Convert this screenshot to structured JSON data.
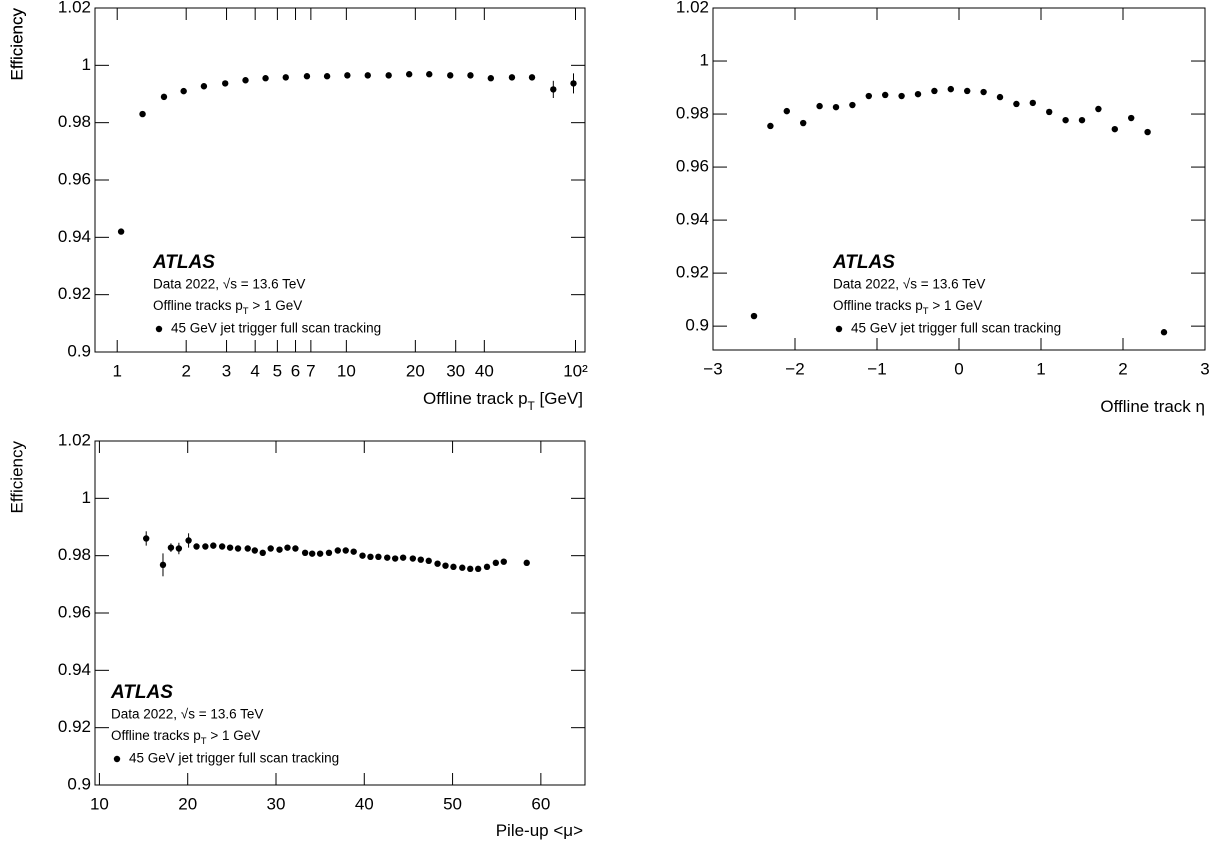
{
  "chart_data": [
    {
      "type": "scatter",
      "ylabel": "Efficiency",
      "xlabel": [
        "Offline track p",
        "T",
        " [GeV]"
      ],
      "log_x": true,
      "xlim": [
        0.8,
        110
      ],
      "xticks": [
        1,
        2,
        3,
        4,
        5,
        6,
        7,
        10,
        20,
        30,
        40,
        {
          "value": 100,
          "label": "10²"
        }
      ],
      "ylim": [
        0.9,
        1.02
      ],
      "yticks": [
        0.9,
        0.92,
        0.94,
        0.96,
        0.98,
        1,
        1.02
      ],
      "annotations": {
        "experiment": "ATLAS",
        "dataset": "Data 2022, √s = 13.6 TeV",
        "selection": [
          "Offline tracks p",
          "T",
          " > 1 GeV"
        ]
      },
      "x": [
        1.04,
        1.29,
        1.6,
        1.95,
        2.39,
        2.96,
        3.63,
        4.44,
        5.44,
        6.73,
        8.24,
        10.1,
        12.4,
        15.3,
        18.8,
        23,
        28.4,
        34.8,
        42.7,
        52.8,
        64.6,
        80,
        98
      ],
      "series": [
        {
          "name": "45 GeV jet trigger full scan tracking",
          "color": "#000000",
          "values": [
            0.942,
            0.983,
            0.989,
            0.991,
            0.9927,
            0.9937,
            0.9948,
            0.9955,
            0.9958,
            0.9962,
            0.9962,
            0.9965,
            0.9965,
            0.9965,
            0.9969,
            0.9969,
            0.9965,
            0.9965,
            0.9955,
            0.9958,
            0.9958,
            0.9916,
            0.9937
          ],
          "errors": [
            0.0005,
            0.0003,
            0.0003,
            0.0003,
            0.0003,
            0.0003,
            0.0003,
            0.0003,
            0.0003,
            0.0003,
            0.0003,
            0.0003,
            0.0003,
            0.0003,
            0.0003,
            0.0003,
            0.0003,
            0.0004,
            0.0005,
            0.0006,
            0.0008,
            0.003,
            0.0035
          ]
        }
      ]
    },
    {
      "type": "scatter",
      "ylabel": "Efficiency",
      "xlabel": [
        "Offline track η"
      ],
      "log_x": false,
      "xlim": [
        -3,
        3
      ],
      "xticks": [
        {
          "value": -3,
          "label": "−3"
        },
        {
          "value": -2,
          "label": "−2"
        },
        {
          "value": -1,
          "label": "−1"
        },
        0,
        1,
        2,
        3
      ],
      "ylim": [
        0.891,
        1.02
      ],
      "yticks": [
        0.9,
        0.92,
        0.94,
        0.96,
        0.98,
        1,
        1.02
      ],
      "annotations": {
        "experiment": "ATLAS",
        "dataset": "Data 2022, √s = 13.6 TeV",
        "selection": [
          "Offline tracks p",
          "T",
          " > 1 GeV"
        ]
      },
      "x": [
        -2.5,
        -2.3,
        -2.1,
        -1.9,
        -1.7,
        -1.5,
        -1.3,
        -1.1,
        -0.9,
        -0.7,
        -0.5,
        -0.3,
        -0.1,
        0.1,
        0.3,
        0.5,
        0.7,
        0.9,
        1.1,
        1.3,
        1.5,
        1.7,
        1.9,
        2.1,
        2.3,
        2.5
      ],
      "series": [
        {
          "name": "45 GeV jet trigger full scan tracking",
          "color": "#000000",
          "values": [
            0.9038,
            0.9755,
            0.9811,
            0.9766,
            0.983,
            0.9826,
            0.9834,
            0.9868,
            0.9872,
            0.9868,
            0.9875,
            0.9887,
            0.9894,
            0.9887,
            0.9883,
            0.9864,
            0.9838,
            0.9842,
            0.9808,
            0.9777,
            0.9777,
            0.9819,
            0.9743,
            0.9785,
            0.9732,
            0.8977
          ],
          "errors": [
            0.0005,
            0.0005,
            0.0005,
            0.0005,
            0.0005,
            0.0005,
            0.0005,
            0.0005,
            0.0005,
            0.0005,
            0.0005,
            0.0005,
            0.0005,
            0.0005,
            0.0005,
            0.0005,
            0.0005,
            0.0005,
            0.0005,
            0.0005,
            0.0005,
            0.0005,
            0.0005,
            0.0005,
            0.0005,
            0.0005
          ]
        }
      ]
    },
    {
      "type": "scatter",
      "ylabel": "Efficiency",
      "xlabel": [
        "Pile-up <μ>"
      ],
      "log_x": false,
      "xlim": [
        9.5,
        65
      ],
      "xticks": [
        10,
        20,
        30,
        40,
        50,
        60
      ],
      "ylim": [
        0.9,
        1.02
      ],
      "yticks": [
        0.9,
        0.92,
        0.94,
        0.96,
        0.98,
        1,
        1.02
      ],
      "annotations": {
        "experiment": "ATLAS",
        "dataset": "Data 2022, √s = 13.6 TeV",
        "selection": [
          "Offline tracks p",
          "T",
          " > 1 GeV"
        ]
      },
      "x": [
        15.3,
        17.2,
        18.1,
        19,
        20.1,
        21,
        22,
        22.9,
        23.9,
        24.8,
        25.7,
        26.8,
        27.6,
        28.5,
        29.4,
        30.4,
        31.3,
        32.2,
        33.3,
        34.1,
        35,
        36,
        37,
        37.9,
        38.8,
        39.8,
        40.7,
        41.6,
        42.6,
        43.5,
        44.4,
        45.5,
        46.4,
        47.3,
        48.3,
        49.2,
        50.1,
        51.1,
        52,
        52.9,
        53.9,
        54.9,
        55.8,
        58.4
      ],
      "series": [
        {
          "name": "45 GeV jet trigger full scan tracking",
          "color": "#000000",
          "values": [
            0.986,
            0.9768,
            0.9828,
            0.9825,
            0.9853,
            0.9832,
            0.9832,
            0.9835,
            0.9832,
            0.9828,
            0.9825,
            0.9825,
            0.9818,
            0.981,
            0.9825,
            0.9821,
            0.9828,
            0.9825,
            0.981,
            0.9807,
            0.9807,
            0.981,
            0.9818,
            0.9818,
            0.9814,
            0.98,
            0.9796,
            0.9796,
            0.9793,
            0.979,
            0.9793,
            0.979,
            0.9786,
            0.9782,
            0.9772,
            0.9765,
            0.9761,
            0.9758,
            0.9754,
            0.9754,
            0.9761,
            0.9775,
            0.9779,
            0.9775
          ],
          "errors": [
            0.0025,
            0.004,
            0.0015,
            0.002,
            0.0025,
            0.0006,
            0.0006,
            0.0006,
            0.0006,
            0.0006,
            0.0006,
            0.0006,
            0.0006,
            0.0006,
            0.0006,
            0.0006,
            0.0006,
            0.0006,
            0.0006,
            0.0006,
            0.0006,
            0.0006,
            0.0006,
            0.0006,
            0.0006,
            0.0006,
            0.0006,
            0.0006,
            0.0006,
            0.0006,
            0.0006,
            0.0006,
            0.0006,
            0.0006,
            0.0006,
            0.0006,
            0.0006,
            0.0006,
            0.0006,
            0.0006,
            0.0006,
            0.0006,
            0.001,
            0.0006
          ]
        }
      ]
    }
  ]
}
